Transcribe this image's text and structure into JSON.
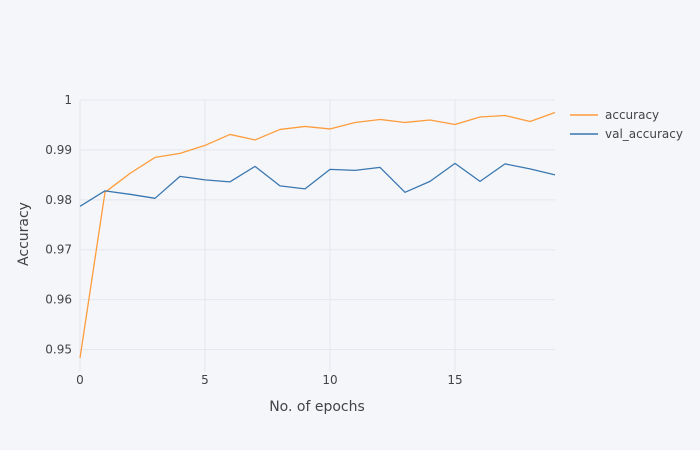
{
  "chart_data": {
    "type": "line",
    "xlabel": "No. of epochs",
    "ylabel": "Accuracy",
    "xlim": [
      0,
      19
    ],
    "ylim": [
      0.9455,
      1.0
    ],
    "x_ticks": [
      0,
      5,
      10,
      15
    ],
    "y_ticks": [
      0.95,
      0.96,
      0.97,
      0.98,
      0.99,
      1
    ],
    "x_tick_labels": [
      "0",
      "5",
      "10",
      "15"
    ],
    "y_tick_labels": [
      "0.95",
      "0.96",
      "0.97",
      "0.98",
      "0.99",
      "1"
    ],
    "grid": true,
    "legend_position": "top-right",
    "x": [
      0,
      1,
      2,
      3,
      4,
      5,
      6,
      7,
      8,
      9,
      10,
      11,
      12,
      13,
      14,
      15,
      16,
      17,
      18,
      19
    ],
    "series": [
      {
        "name": "accuracy",
        "color": "#ff9c3b",
        "values": [
          0.9483,
          0.9815,
          0.9853,
          0.9885,
          0.9893,
          0.9909,
          0.9931,
          0.992,
          0.9941,
          0.9947,
          0.9942,
          0.9955,
          0.9961,
          0.9955,
          0.996,
          0.9951,
          0.9966,
          0.9969,
          0.9957,
          0.9975
        ]
      },
      {
        "name": "val_accuracy",
        "color": "#3a77b0",
        "values": [
          0.9787,
          0.9818,
          0.9811,
          0.9803,
          0.9847,
          0.984,
          0.9836,
          0.9867,
          0.9828,
          0.9822,
          0.9861,
          0.9859,
          0.9865,
          0.9815,
          0.9837,
          0.9873,
          0.9837,
          0.9872,
          0.9862,
          0.985
        ]
      }
    ]
  }
}
